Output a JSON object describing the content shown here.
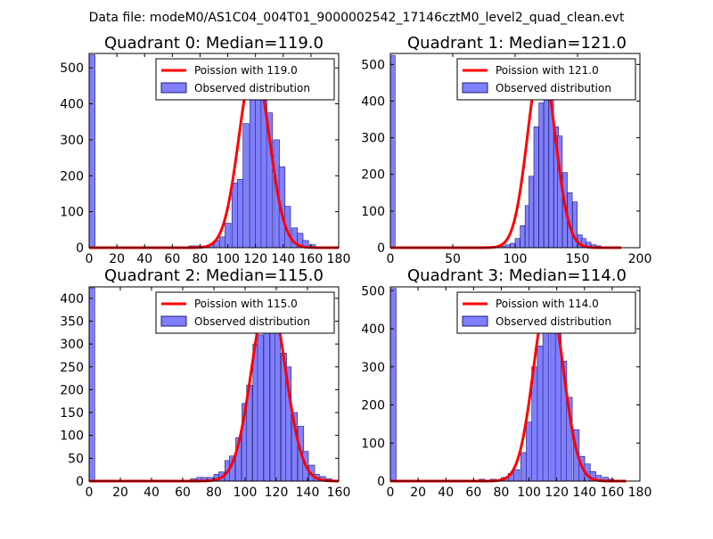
{
  "suptitle": "Data file: modeM0/AS1C04_004T01_9000002542_17146cztM0_level2_quad_clean.evt",
  "colors": {
    "bars_fill": "#7f7fff",
    "bars_edge": "#1f1f6f",
    "poisson_line": "#ff0000",
    "axes": "#000000",
    "background": "#ffffff"
  },
  "chart_data": [
    {
      "type": "bar",
      "title": "Quadrant 0: Median=119.0",
      "xlim": [
        0,
        180
      ],
      "ylim": [
        0,
        540
      ],
      "xticks": [
        "0",
        "20",
        "40",
        "60",
        "80",
        "100",
        "120",
        "140",
        "160",
        "180"
      ],
      "yticks": [
        "0",
        "100",
        "200",
        "300",
        "400",
        "500"
      ],
      "xtick_values": [
        0,
        20,
        40,
        60,
        80,
        100,
        120,
        140,
        160,
        180
      ],
      "ytick_values": [
        0,
        100,
        200,
        300,
        400,
        500
      ],
      "bin_width": 4.3,
      "bins": [
        {
          "x": 0,
          "y": 536
        },
        {
          "x": 72,
          "y": 5
        },
        {
          "x": 77,
          "y": 5
        },
        {
          "x": 86,
          "y": 8
        },
        {
          "x": 90,
          "y": 20
        },
        {
          "x": 94,
          "y": 30
        },
        {
          "x": 98,
          "y": 68
        },
        {
          "x": 103,
          "y": 180
        },
        {
          "x": 107,
          "y": 190
        },
        {
          "x": 111,
          "y": 345
        },
        {
          "x": 116,
          "y": 420
        },
        {
          "x": 120,
          "y": 510
        },
        {
          "x": 124,
          "y": 455
        },
        {
          "x": 128,
          "y": 375
        },
        {
          "x": 133,
          "y": 300
        },
        {
          "x": 137,
          "y": 225
        },
        {
          "x": 141,
          "y": 115
        },
        {
          "x": 146,
          "y": 55
        },
        {
          "x": 150,
          "y": 40
        },
        {
          "x": 154,
          "y": 20
        },
        {
          "x": 159,
          "y": 8
        },
        {
          "x": 163,
          "y": 3
        }
      ],
      "poisson_mean": 119.0,
      "poisson_peak": 510,
      "poisson_range": [
        0,
        180
      ],
      "legend": [
        "Poission with 119.0",
        "Observed distribution"
      ]
    },
    {
      "type": "bar",
      "title": "Quadrant 1: Median=121.0",
      "xlim": [
        0,
        200
      ],
      "ylim": [
        0,
        530
      ],
      "xticks": [
        "0",
        "50",
        "100",
        "150",
        "200"
      ],
      "yticks": [
        "0",
        "100",
        "200",
        "300",
        "400",
        "500"
      ],
      "xtick_values": [
        0,
        50,
        100,
        150,
        200
      ],
      "ytick_values": [
        0,
        100,
        200,
        300,
        400,
        500
      ],
      "bin_width": 3.8,
      "bins": [
        {
          "x": 0,
          "y": 525
        },
        {
          "x": 77,
          "y": 3
        },
        {
          "x": 89,
          "y": 4
        },
        {
          "x": 92,
          "y": 8
        },
        {
          "x": 96,
          "y": 12
        },
        {
          "x": 100,
          "y": 25
        },
        {
          "x": 104,
          "y": 60
        },
        {
          "x": 108,
          "y": 115
        },
        {
          "x": 111,
          "y": 195
        },
        {
          "x": 115,
          "y": 330
        },
        {
          "x": 119,
          "y": 395
        },
        {
          "x": 123,
          "y": 490
        },
        {
          "x": 127,
          "y": 420
        },
        {
          "x": 131,
          "y": 330
        },
        {
          "x": 134,
          "y": 305
        },
        {
          "x": 138,
          "y": 205
        },
        {
          "x": 142,
          "y": 150
        },
        {
          "x": 146,
          "y": 125
        },
        {
          "x": 150,
          "y": 35
        },
        {
          "x": 153,
          "y": 25
        },
        {
          "x": 157,
          "y": 15
        },
        {
          "x": 161,
          "y": 8
        },
        {
          "x": 165,
          "y": 5
        }
      ],
      "poisson_mean": 121.0,
      "poisson_peak": 510,
      "poisson_range": [
        0,
        185
      ],
      "legend": [
        "Poission with 121.0",
        "Observed distribution"
      ]
    },
    {
      "type": "bar",
      "title": "Quadrant 2: Median=115.0",
      "xlim": [
        0,
        160
      ],
      "ylim": [
        0,
        425
      ],
      "xticks": [
        "0",
        "20",
        "40",
        "60",
        "80",
        "100",
        "120",
        "140",
        "160"
      ],
      "yticks": [
        "0",
        "50",
        "100",
        "150",
        "200",
        "250",
        "300",
        "350",
        "400"
      ],
      "xtick_values": [
        0,
        20,
        40,
        60,
        80,
        100,
        120,
        140,
        160
      ],
      "ytick_values": [
        0,
        50,
        100,
        150,
        200,
        250,
        300,
        350,
        400
      ],
      "bin_width": 3.6,
      "bins": [
        {
          "x": 0,
          "y": 423
        },
        {
          "x": 65,
          "y": 5
        },
        {
          "x": 69,
          "y": 8
        },
        {
          "x": 72,
          "y": 8
        },
        {
          "x": 76,
          "y": 8
        },
        {
          "x": 80,
          "y": 15
        },
        {
          "x": 83,
          "y": 20
        },
        {
          "x": 87,
          "y": 45
        },
        {
          "x": 90,
          "y": 55
        },
        {
          "x": 94,
          "y": 95
        },
        {
          "x": 98,
          "y": 170
        },
        {
          "x": 101,
          "y": 210
        },
        {
          "x": 105,
          "y": 300
        },
        {
          "x": 108,
          "y": 320
        },
        {
          "x": 112,
          "y": 400
        },
        {
          "x": 116,
          "y": 380
        },
        {
          "x": 119,
          "y": 370
        },
        {
          "x": 123,
          "y": 280
        },
        {
          "x": 126,
          "y": 250
        },
        {
          "x": 130,
          "y": 150
        },
        {
          "x": 134,
          "y": 120
        },
        {
          "x": 137,
          "y": 65
        },
        {
          "x": 141,
          "y": 35
        },
        {
          "x": 144,
          "y": 15
        },
        {
          "x": 148,
          "y": 10
        },
        {
          "x": 152,
          "y": 5
        }
      ],
      "poisson_mean": 115.0,
      "poisson_peak": 410,
      "poisson_range": [
        0,
        160
      ],
      "legend": [
        "Poission with 115.0",
        "Observed distribution"
      ]
    },
    {
      "type": "bar",
      "title": "Quadrant 3: Median=114.0",
      "xlim": [
        0,
        180
      ],
      "ylim": [
        0,
        510
      ],
      "xticks": [
        "0",
        "20",
        "40",
        "60",
        "80",
        "100",
        "120",
        "140",
        "160",
        "180"
      ],
      "yticks": [
        "0",
        "100",
        "200",
        "300",
        "400",
        "500"
      ],
      "xtick_values": [
        0,
        20,
        40,
        60,
        80,
        100,
        120,
        140,
        160,
        180
      ],
      "ytick_values": [
        0,
        100,
        200,
        300,
        400,
        500
      ],
      "bin_width": 4.2,
      "bins": [
        {
          "x": 0,
          "y": 506
        },
        {
          "x": 64,
          "y": 5
        },
        {
          "x": 72,
          "y": 5
        },
        {
          "x": 81,
          "y": 10
        },
        {
          "x": 85,
          "y": 20
        },
        {
          "x": 89,
          "y": 30
        },
        {
          "x": 94,
          "y": 75
        },
        {
          "x": 98,
          "y": 155
        },
        {
          "x": 102,
          "y": 300
        },
        {
          "x": 106,
          "y": 355
        },
        {
          "x": 110,
          "y": 430
        },
        {
          "x": 115,
          "y": 490
        },
        {
          "x": 119,
          "y": 390
        },
        {
          "x": 123,
          "y": 315
        },
        {
          "x": 127,
          "y": 220
        },
        {
          "x": 132,
          "y": 135
        },
        {
          "x": 136,
          "y": 65
        },
        {
          "x": 140,
          "y": 45
        },
        {
          "x": 144,
          "y": 25
        },
        {
          "x": 148,
          "y": 15
        },
        {
          "x": 153,
          "y": 10
        },
        {
          "x": 157,
          "y": 5
        }
      ],
      "poisson_mean": 114.0,
      "poisson_peak": 490,
      "poisson_range": [
        0,
        170
      ],
      "legend": [
        "Poission with 114.0",
        "Observed distribution"
      ]
    }
  ]
}
